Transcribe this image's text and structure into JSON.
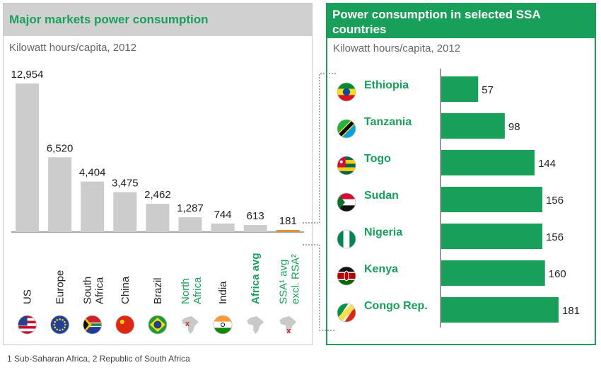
{
  "left": {
    "title": "Major markets power consumption",
    "subtitle": "Kilowatt hours/capita, 2012"
  },
  "right": {
    "title": "Power consumption in selected SSA countries",
    "subtitle": "Kilowatt hours/capita, 2012"
  },
  "footnote": "1 Sub-Saharan Africa, 2 Republic of South Africa",
  "colors": {
    "bar_grey": "#cccccc",
    "green": "#18a05a",
    "highlight_bar": "#e0913a",
    "text_green": "#18a05a"
  },
  "chart_data": [
    {
      "type": "bar",
      "title": "Major markets power consumption",
      "subtitle": "Kilowatt hours/capita, 2012",
      "categories": [
        "US",
        "Europe",
        "South Africa",
        "China",
        "Brazil",
        "North Africa",
        "India",
        "Africa avg",
        "SSA¹ avg excl. RSA²"
      ],
      "label_lines": [
        [
          "US"
        ],
        [
          "Europe"
        ],
        [
          "South",
          "Africa"
        ],
        [
          "China"
        ],
        [
          "Brazil"
        ],
        [
          "North",
          "Africa"
        ],
        [
          "India"
        ],
        [
          "Africa avg"
        ],
        [
          "SSA¹ avg",
          "excl. RSA²"
        ]
      ],
      "value_labels": [
        "12,954",
        "6,520",
        "4,404",
        "3,475",
        "2,462",
        "1,287",
        "744",
        "613",
        "181"
      ],
      "values": [
        12954,
        6520,
        4404,
        3475,
        2462,
        1287,
        744,
        613,
        181
      ],
      "label_styles": [
        "normal",
        "normal",
        "normal",
        "normal",
        "normal",
        "green",
        "normal",
        "green-bold",
        "green"
      ],
      "icons": [
        "us-flag-icon",
        "eu-flag-icon",
        "south-africa-flag-icon",
        "china-flag-icon",
        "brazil-flag-icon",
        "africa-map-north-x-icon",
        "india-flag-icon",
        "africa-map-icon",
        "africa-map-south-x-icon"
      ],
      "highlight_index": 8,
      "ylim": [
        0,
        12954
      ]
    },
    {
      "type": "bar",
      "orientation": "horizontal",
      "title": "Power consumption in selected SSA countries",
      "subtitle": "Kilowatt hours/capita, 2012",
      "categories": [
        "Ethiopia",
        "Tanzania",
        "Togo",
        "Sudan",
        "Nigeria",
        "Kenya",
        "Congo Rep."
      ],
      "values": [
        57,
        98,
        144,
        156,
        156,
        160,
        181
      ],
      "icons": [
        "ethiopia-flag-icon",
        "tanzania-flag-icon",
        "togo-flag-icon",
        "sudan-flag-icon",
        "nigeria-flag-icon",
        "kenya-flag-icon",
        "congo-flag-icon"
      ],
      "xlim": [
        0,
        181
      ]
    }
  ]
}
